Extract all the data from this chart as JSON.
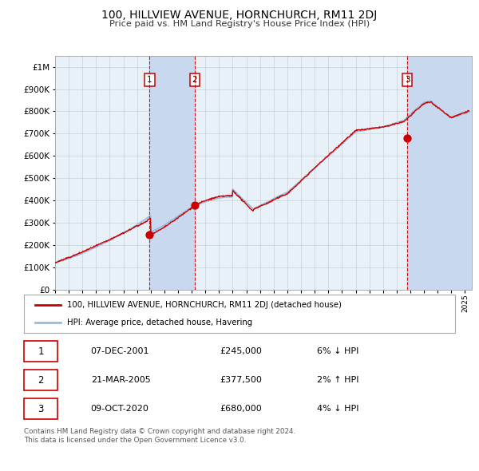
{
  "title": "100, HILLVIEW AVENUE, HORNCHURCH, RM11 2DJ",
  "subtitle": "Price paid vs. HM Land Registry's House Price Index (HPI)",
  "footer1": "Contains HM Land Registry data © Crown copyright and database right 2024.",
  "footer2": "This data is licensed under the Open Government Licence v3.0.",
  "legend_label1": "100, HILLVIEW AVENUE, HORNCHURCH, RM11 2DJ (detached house)",
  "legend_label2": "HPI: Average price, detached house, Havering",
  "transactions": [
    {
      "num": 1,
      "date": "07-DEC-2001",
      "price": 245000,
      "pct": "6%",
      "dir": "↓",
      "year_x": 2001.92
    },
    {
      "num": 2,
      "date": "21-MAR-2005",
      "price": 377500,
      "pct": "2%",
      "dir": "↑",
      "year_x": 2005.22
    },
    {
      "num": 3,
      "date": "09-OCT-2020",
      "price": 680000,
      "pct": "4%",
      "dir": "↓",
      "year_x": 2020.77
    }
  ],
  "ylim": [
    0,
    1050000
  ],
  "xlim_start": 1995.0,
  "xlim_end": 2025.5,
  "background_color": "#ffffff",
  "plot_bg_color": "#e8f0f8",
  "grid_color": "#c8d0d8",
  "hpi_color": "#99bbdd",
  "price_color": "#cc0000",
  "shade_color": "#c8d8ee",
  "dashed_color": "#cc0000",
  "marker_color": "#cc0000",
  "yticks": [
    0,
    100000,
    200000,
    300000,
    400000,
    500000,
    600000,
    700000,
    800000,
    900000,
    1000000
  ],
  "xticks_start": 1995,
  "xticks_end": 2026
}
